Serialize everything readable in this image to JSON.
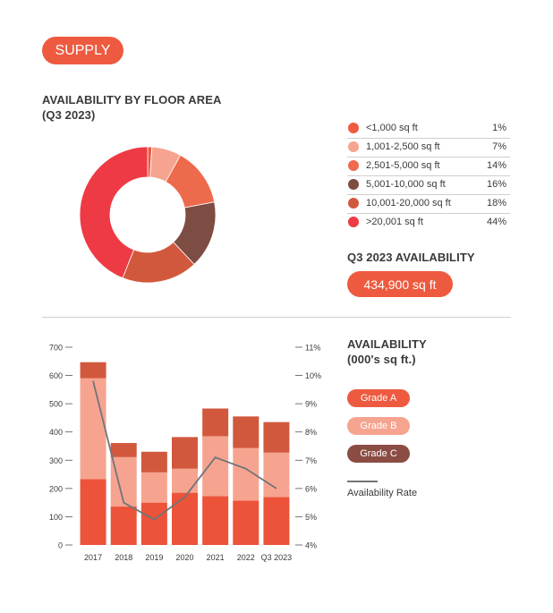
{
  "supply_label": "SUPPLY",
  "donut_title": "AVAILABILITY BY FLOOR AREA\n(Q3 2023)",
  "legend": [
    {
      "label": "<1,000 sq ft",
      "pct": "1%",
      "value": 1,
      "color": "#ee5a3f"
    },
    {
      "label": "1,001-2,500 sq ft",
      "pct": "7%",
      "value": 7,
      "color": "#f6a490"
    },
    {
      "label": "2,501-5,000 sq ft",
      "pct": "14%",
      "value": 14,
      "color": "#ee6a4c"
    },
    {
      "label": "5,001-10,000 sq ft",
      "pct": "16%",
      "value": 16,
      "color": "#7d4c42"
    },
    {
      "label": "10,001-20,000 sq ft",
      "pct": "18%",
      "value": 18,
      "color": "#d2583d"
    },
    {
      "label": ">20,001 sq ft",
      "pct": "44%",
      "value": 44,
      "color": "#ee3a44"
    }
  ],
  "availability_heading": "Q3 2023 AVAILABILITY",
  "availability_value": "434,900 sq ft",
  "bar_heading": "AVAILABILITY\n(000's sq ft.)",
  "grades": {
    "a": "Grade A",
    "b": "Grade B",
    "c": "Grade C"
  },
  "rate_label": "Availability Rate",
  "chart_data": [
    {
      "type": "pie",
      "title": "AVAILABILITY BY FLOOR AREA (Q3 2023)",
      "categories": [
        "<1,000 sq ft",
        "1,001-2,500 sq ft",
        "2,501-5,000 sq ft",
        "5,001-10,000 sq ft",
        "10,001-20,000 sq ft",
        ">20,001 sq ft"
      ],
      "values": [
        1,
        7,
        14,
        16,
        18,
        44
      ]
    },
    {
      "type": "bar",
      "title": "AVAILABILITY (000's sq ft.)",
      "categories": [
        "2017",
        "2018",
        "2019",
        "2020",
        "2021",
        "2022",
        "Q3 2023"
      ],
      "series": [
        {
          "name": "Grade A",
          "values": [
            233,
            136,
            150,
            185,
            173,
            157,
            170
          ],
          "color": "#ec5339"
        },
        {
          "name": "Grade B",
          "values": [
            357,
            175,
            107,
            85,
            212,
            186,
            157
          ],
          "color": "#f6a490"
        },
        {
          "name": "Grade C",
          "values": [
            57,
            50,
            73,
            112,
            98,
            112,
            108
          ],
          "color": "#d2583d"
        }
      ],
      "line_series": {
        "name": "Availability Rate",
        "values": [
          9.8,
          5.5,
          4.9,
          5.7,
          7.1,
          6.7,
          6.0
        ],
        "color": "#707578"
      },
      "ylim": [
        0,
        700
      ],
      "yticks": [
        "700",
        "600",
        "500",
        "400",
        "300",
        "200",
        "100",
        "0"
      ],
      "y2lim": [
        4,
        11
      ],
      "y2ticks": [
        "11%",
        "10%",
        "9%",
        "8%",
        "7%",
        "6%",
        "5%",
        "4%"
      ],
      "stacked": true
    }
  ]
}
